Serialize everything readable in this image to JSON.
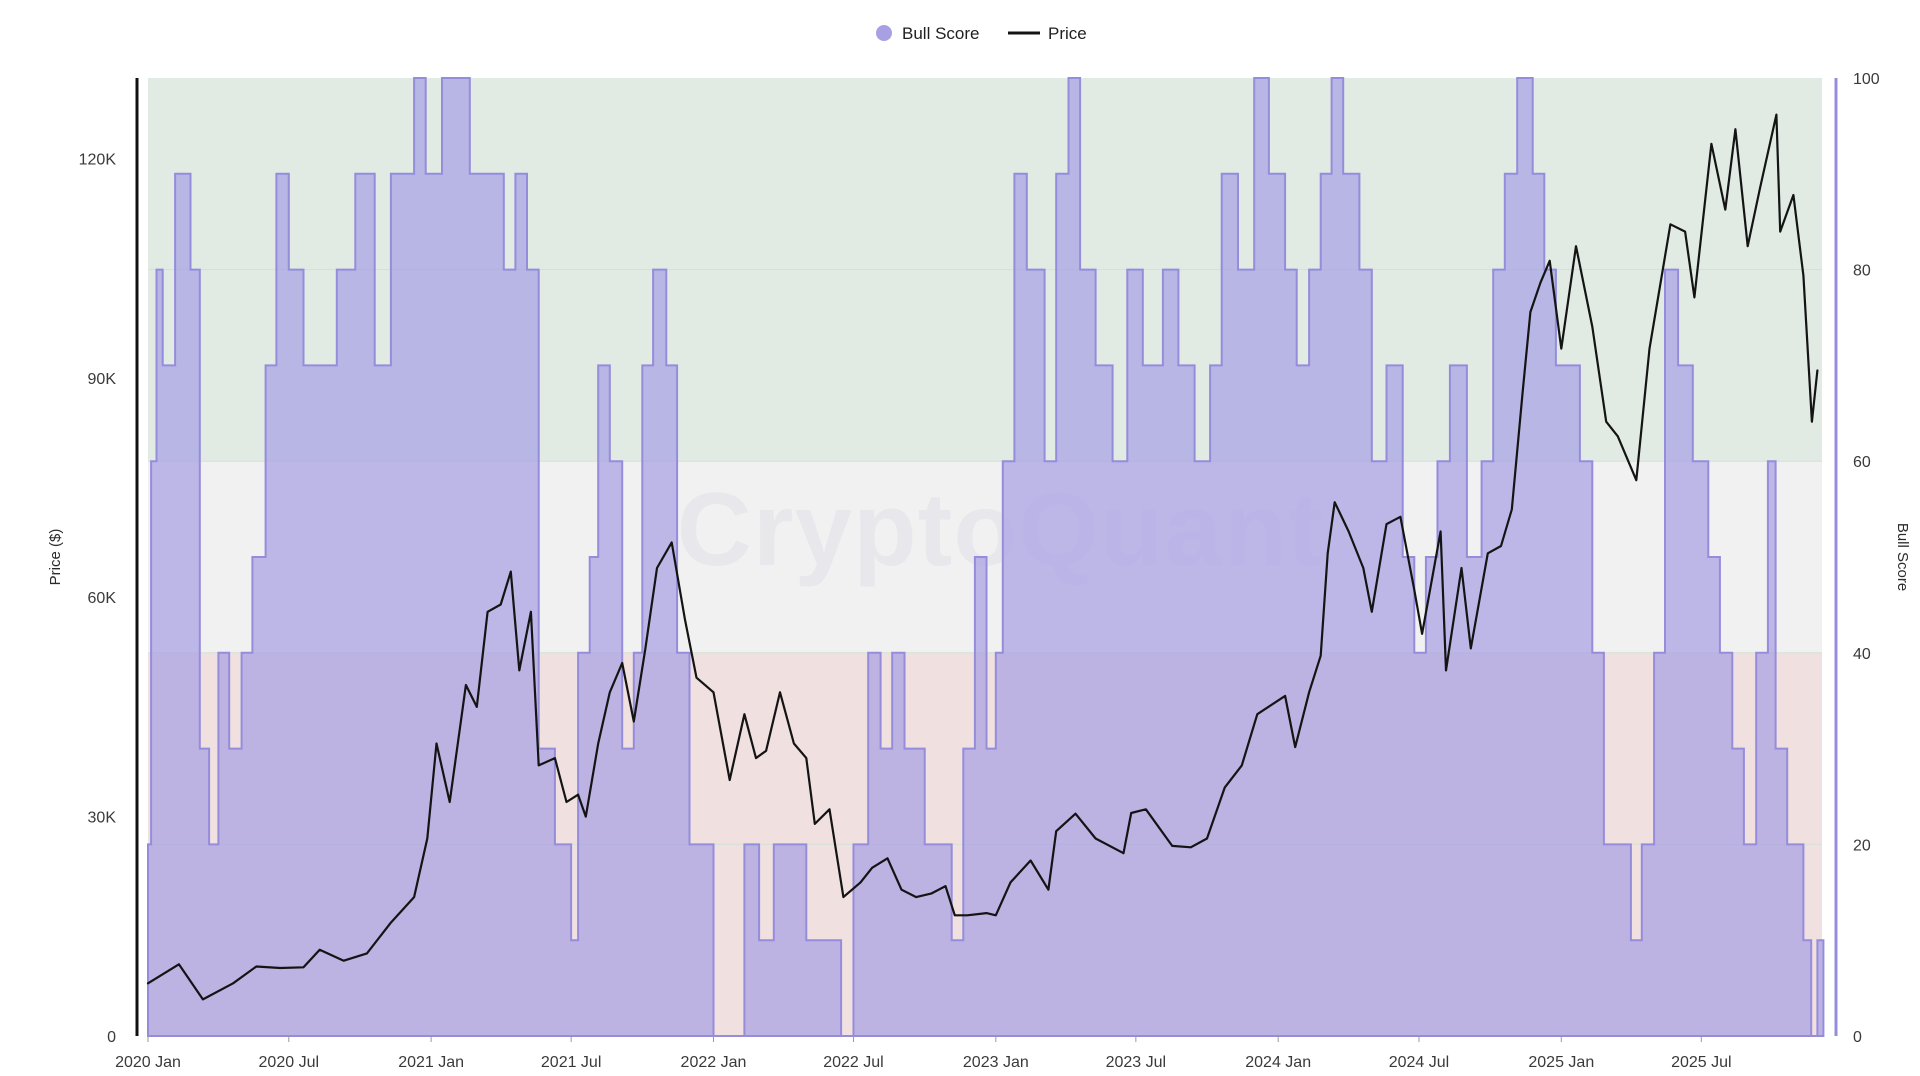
{
  "legend": {
    "bull_label": "Bull Score",
    "price_label": "Price"
  },
  "watermark": "CryptoQuant",
  "axes": {
    "left_title": "Price ($)",
    "right_title": "Bull Score"
  },
  "colors": {
    "bull_fill": "#a7a1e3",
    "bull_stroke": "#958cdb",
    "price": "#141414",
    "zone_green": "#e1ebe4",
    "zone_gray": "#f1f1f1",
    "zone_red": "#f0e0e0"
  },
  "chart_data": {
    "type": "area",
    "title": "",
    "xlabel": "",
    "ylabel": "Price ($)",
    "y2label": "Bull Score",
    "x_tick_labels": [
      "2020 Jan",
      "2020 Jul",
      "2021 Jan",
      "2021 Jul",
      "2022 Jan",
      "2022 Jul",
      "2023 Jan",
      "2023 Jul",
      "2024 Jan",
      "2024 Jul",
      "2025 Jan",
      "2025 Jul"
    ],
    "y_left_ticks": [
      "0",
      "30K",
      "60K",
      "90K",
      "120K"
    ],
    "y_right_ticks": [
      "0",
      "20",
      "40",
      "60",
      "80",
      "100"
    ],
    "y_left_range": [
      0,
      131000
    ],
    "y_right_range": [
      0,
      100
    ],
    "zones": [
      {
        "from": 0,
        "to": 40,
        "color": "#f0e0e0"
      },
      {
        "from": 40,
        "to": 60,
        "color": "#f1f1f1"
      },
      {
        "from": 60,
        "to": 100,
        "color": "#e1ebe4"
      }
    ],
    "legend_position": "top-center",
    "series": [
      {
        "name": "Bull Score",
        "kind": "area",
        "points": [
          [
            "2020-01-01",
            20
          ],
          [
            "2020-01-05",
            60
          ],
          [
            "2020-01-12",
            80
          ],
          [
            "2020-01-20",
            70
          ],
          [
            "2020-02-05",
            90
          ],
          [
            "2020-02-25",
            80
          ],
          [
            "2020-03-08",
            30
          ],
          [
            "2020-03-20",
            20
          ],
          [
            "2020-04-01",
            40
          ],
          [
            "2020-04-15",
            30
          ],
          [
            "2020-05-01",
            40
          ],
          [
            "2020-05-15",
            50
          ],
          [
            "2020-06-01",
            70
          ],
          [
            "2020-06-15",
            90
          ],
          [
            "2020-07-01",
            80
          ],
          [
            "2020-07-20",
            70
          ],
          [
            "2020-08-10",
            70
          ],
          [
            "2020-09-01",
            80
          ],
          [
            "2020-09-25",
            90
          ],
          [
            "2020-10-20",
            70
          ],
          [
            "2020-11-10",
            90
          ],
          [
            "2020-12-10",
            100
          ],
          [
            "2020-12-25",
            90
          ],
          [
            "2021-01-15",
            100
          ],
          [
            "2021-02-20",
            90
          ],
          [
            "2021-03-15",
            90
          ],
          [
            "2021-04-05",
            80
          ],
          [
            "2021-04-20",
            90
          ],
          [
            "2021-05-05",
            80
          ],
          [
            "2021-05-20",
            30
          ],
          [
            "2021-06-10",
            20
          ],
          [
            "2021-07-01",
            10
          ],
          [
            "2021-07-10",
            40
          ],
          [
            "2021-07-25",
            50
          ],
          [
            "2021-08-05",
            70
          ],
          [
            "2021-08-20",
            60
          ],
          [
            "2021-09-05",
            30
          ],
          [
            "2021-09-20",
            40
          ],
          [
            "2021-10-01",
            70
          ],
          [
            "2021-10-15",
            80
          ],
          [
            "2021-11-01",
            70
          ],
          [
            "2021-11-15",
            40
          ],
          [
            "2021-12-01",
            20
          ],
          [
            "2021-12-20",
            20
          ],
          [
            "2022-01-01",
            0
          ],
          [
            "2022-01-20",
            0
          ],
          [
            "2022-02-10",
            20
          ],
          [
            "2022-03-01",
            10
          ],
          [
            "2022-03-20",
            20
          ],
          [
            "2022-04-10",
            20
          ],
          [
            "2022-05-01",
            10
          ],
          [
            "2022-05-20",
            10
          ],
          [
            "2022-06-01",
            10
          ],
          [
            "2022-06-15",
            0
          ],
          [
            "2022-07-01",
            20
          ],
          [
            "2022-07-20",
            40
          ],
          [
            "2022-08-05",
            30
          ],
          [
            "2022-08-20",
            40
          ],
          [
            "2022-09-05",
            30
          ],
          [
            "2022-10-01",
            20
          ],
          [
            "2022-10-25",
            20
          ],
          [
            "2022-11-05",
            10
          ],
          [
            "2022-11-20",
            30
          ],
          [
            "2022-12-05",
            50
          ],
          [
            "2022-12-20",
            30
          ],
          [
            "2023-01-01",
            40
          ],
          [
            "2023-01-10",
            60
          ],
          [
            "2023-01-25",
            90
          ],
          [
            "2023-02-10",
            80
          ],
          [
            "2023-03-05",
            60
          ],
          [
            "2023-03-20",
            90
          ],
          [
            "2023-04-05",
            100
          ],
          [
            "2023-04-20",
            80
          ],
          [
            "2023-05-10",
            70
          ],
          [
            "2023-06-01",
            60
          ],
          [
            "2023-06-20",
            80
          ],
          [
            "2023-07-10",
            70
          ],
          [
            "2023-08-05",
            80
          ],
          [
            "2023-08-25",
            70
          ],
          [
            "2023-09-15",
            60
          ],
          [
            "2023-10-05",
            70
          ],
          [
            "2023-10-20",
            90
          ],
          [
            "2023-11-10",
            80
          ],
          [
            "2023-12-01",
            100
          ],
          [
            "2023-12-20",
            90
          ],
          [
            "2024-01-10",
            80
          ],
          [
            "2024-01-25",
            70
          ],
          [
            "2024-02-10",
            80
          ],
          [
            "2024-02-25",
            90
          ],
          [
            "2024-03-10",
            100
          ],
          [
            "2024-03-25",
            90
          ],
          [
            "2024-04-15",
            80
          ],
          [
            "2024-05-01",
            60
          ],
          [
            "2024-05-20",
            70
          ],
          [
            "2024-06-10",
            50
          ],
          [
            "2024-06-25",
            40
          ],
          [
            "2024-07-10",
            50
          ],
          [
            "2024-07-25",
            60
          ],
          [
            "2024-08-10",
            70
          ],
          [
            "2024-09-01",
            50
          ],
          [
            "2024-09-20",
            60
          ],
          [
            "2024-10-05",
            80
          ],
          [
            "2024-10-20",
            90
          ],
          [
            "2024-11-05",
            100
          ],
          [
            "2024-11-25",
            90
          ],
          [
            "2024-12-10",
            80
          ],
          [
            "2024-12-25",
            70
          ],
          [
            "2025-01-10",
            70
          ],
          [
            "2025-01-25",
            60
          ],
          [
            "2025-02-10",
            40
          ],
          [
            "2025-02-25",
            20
          ],
          [
            "2025-03-15",
            20
          ],
          [
            "2025-04-01",
            10
          ],
          [
            "2025-04-15",
            20
          ],
          [
            "2025-05-01",
            40
          ],
          [
            "2025-05-15",
            80
          ],
          [
            "2025-06-01",
            70
          ],
          [
            "2025-06-20",
            60
          ],
          [
            "2025-07-10",
            50
          ],
          [
            "2025-07-25",
            40
          ],
          [
            "2025-08-10",
            30
          ],
          [
            "2025-08-25",
            20
          ],
          [
            "2025-09-10",
            40
          ],
          [
            "2025-09-25",
            60
          ],
          [
            "2025-10-05",
            30
          ],
          [
            "2025-10-20",
            20
          ],
          [
            "2025-11-01",
            20
          ],
          [
            "2025-11-10",
            10
          ],
          [
            "2025-11-20",
            0
          ],
          [
            "2025-11-28",
            10
          ]
        ]
      },
      {
        "name": "Price",
        "kind": "line",
        "points": [
          [
            "2020-01-01",
            7200
          ],
          [
            "2020-02-10",
            9800
          ],
          [
            "2020-03-12",
            5000
          ],
          [
            "2020-04-20",
            7200
          ],
          [
            "2020-05-20",
            9500
          ],
          [
            "2020-06-20",
            9300
          ],
          [
            "2020-07-20",
            9400
          ],
          [
            "2020-08-10",
            11800
          ],
          [
            "2020-09-10",
            10300
          ],
          [
            "2020-10-10",
            11300
          ],
          [
            "2020-11-10",
            15500
          ],
          [
            "2020-12-10",
            19000
          ],
          [
            "2020-12-27",
            27000
          ],
          [
            "2021-01-08",
            40000
          ],
          [
            "2021-01-25",
            32000
          ],
          [
            "2021-02-15",
            48000
          ],
          [
            "2021-03-01",
            45000
          ],
          [
            "2021-03-15",
            58000
          ],
          [
            "2021-04-01",
            59000
          ],
          [
            "2021-04-14",
            63500
          ],
          [
            "2021-04-25",
            50000
          ],
          [
            "2021-05-10",
            58000
          ],
          [
            "2021-05-20",
            37000
          ],
          [
            "2021-06-10",
            38000
          ],
          [
            "2021-06-25",
            32000
          ],
          [
            "2021-07-10",
            33000
          ],
          [
            "2021-07-20",
            30000
          ],
          [
            "2021-08-05",
            40000
          ],
          [
            "2021-08-20",
            47000
          ],
          [
            "2021-09-05",
            51000
          ],
          [
            "2021-09-20",
            43000
          ],
          [
            "2021-10-05",
            53000
          ],
          [
            "2021-10-20",
            64000
          ],
          [
            "2021-11-08",
            67500
          ],
          [
            "2021-11-25",
            57000
          ],
          [
            "2021-12-10",
            49000
          ],
          [
            "2022-01-01",
            47000
          ],
          [
            "2022-01-22",
            35000
          ],
          [
            "2022-02-10",
            44000
          ],
          [
            "2022-02-25",
            38000
          ],
          [
            "2022-03-10",
            39000
          ],
          [
            "2022-03-28",
            47000
          ],
          [
            "2022-04-15",
            40000
          ],
          [
            "2022-05-01",
            38000
          ],
          [
            "2022-05-12",
            29000
          ],
          [
            "2022-05-31",
            31000
          ],
          [
            "2022-06-18",
            19000
          ],
          [
            "2022-07-10",
            21000
          ],
          [
            "2022-07-25",
            23000
          ],
          [
            "2022-08-14",
            24300
          ],
          [
            "2022-09-01",
            20000
          ],
          [
            "2022-09-20",
            19000
          ],
          [
            "2022-10-10",
            19500
          ],
          [
            "2022-10-28",
            20500
          ],
          [
            "2022-11-09",
            16500
          ],
          [
            "2022-11-25",
            16500
          ],
          [
            "2022-12-20",
            16800
          ],
          [
            "2023-01-01",
            16500
          ],
          [
            "2023-01-20",
            21000
          ],
          [
            "2023-02-15",
            24000
          ],
          [
            "2023-03-10",
            20000
          ],
          [
            "2023-03-20",
            28000
          ],
          [
            "2023-04-14",
            30400
          ],
          [
            "2023-05-10",
            27000
          ],
          [
            "2023-06-15",
            25000
          ],
          [
            "2023-06-25",
            30500
          ],
          [
            "2023-07-14",
            31000
          ],
          [
            "2023-08-17",
            26000
          ],
          [
            "2023-09-10",
            25800
          ],
          [
            "2023-10-01",
            27000
          ],
          [
            "2023-10-24",
            34000
          ],
          [
            "2023-11-15",
            37000
          ],
          [
            "2023-12-05",
            44000
          ],
          [
            "2024-01-10",
            46500
          ],
          [
            "2024-01-23",
            39500
          ],
          [
            "2024-02-10",
            47000
          ],
          [
            "2024-02-25",
            52000
          ],
          [
            "2024-03-05",
            66000
          ],
          [
            "2024-03-14",
            73000
          ],
          [
            "2024-04-01",
            69000
          ],
          [
            "2024-04-20",
            64000
          ],
          [
            "2024-05-01",
            58000
          ],
          [
            "2024-05-20",
            70000
          ],
          [
            "2024-06-07",
            71000
          ],
          [
            "2024-06-25",
            61000
          ],
          [
            "2024-07-05",
            55000
          ],
          [
            "2024-07-29",
            69000
          ],
          [
            "2024-08-05",
            50000
          ],
          [
            "2024-08-25",
            64000
          ],
          [
            "2024-09-06",
            53000
          ],
          [
            "2024-09-28",
            66000
          ],
          [
            "2024-10-15",
            67000
          ],
          [
            "2024-10-29",
            72000
          ],
          [
            "2024-11-12",
            88000
          ],
          [
            "2024-11-22",
            99000
          ],
          [
            "2024-12-05",
            103000
          ],
          [
            "2024-12-17",
            106000
          ],
          [
            "2025-01-01",
            94000
          ],
          [
            "2025-01-20",
            108000
          ],
          [
            "2025-02-10",
            97000
          ],
          [
            "2025-02-28",
            84000
          ],
          [
            "2025-03-15",
            82000
          ],
          [
            "2025-04-08",
            76000
          ],
          [
            "2025-04-25",
            94000
          ],
          [
            "2025-05-22",
            111000
          ],
          [
            "2025-06-10",
            110000
          ],
          [
            "2025-06-22",
            101000
          ],
          [
            "2025-07-14",
            122000
          ],
          [
            "2025-08-01",
            113000
          ],
          [
            "2025-08-14",
            124000
          ],
          [
            "2025-08-30",
            108000
          ],
          [
            "2025-09-15",
            116000
          ],
          [
            "2025-10-06",
            126000
          ],
          [
            "2025-10-11",
            110000
          ],
          [
            "2025-10-28",
            115000
          ],
          [
            "2025-11-10",
            104000
          ],
          [
            "2025-11-21",
            84000
          ],
          [
            "2025-11-28",
            91000
          ]
        ]
      }
    ]
  }
}
